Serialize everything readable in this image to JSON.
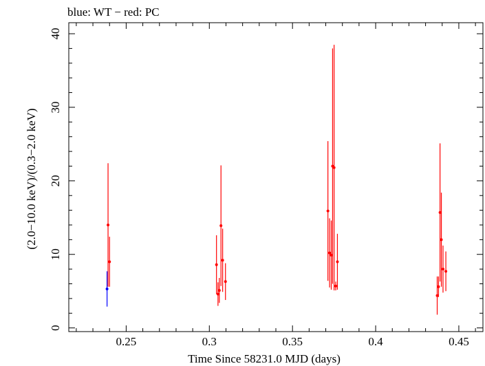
{
  "chart_data": {
    "type": "scatter",
    "title": "blue: WT − red: PC",
    "xlabel": "Time Since 58231.0 MJD (days)",
    "ylabel": "(2.0−10.0 keV)/(0.3−2.0 keV)",
    "xlim": [
      0.2155,
      0.4645
    ],
    "ylim": [
      -0.5,
      41.5
    ],
    "x_ticks": [
      0.25,
      0.3,
      0.35,
      0.4,
      0.45
    ],
    "x_tick_labels": [
      "0.25",
      "0.3",
      "0.35",
      "0.4",
      "0.45"
    ],
    "y_ticks": [
      0,
      10,
      20,
      30,
      40
    ],
    "y_tick_labels": [
      "0",
      "10",
      "20",
      "30",
      "40"
    ],
    "grid": false,
    "series": [
      {
        "color": "#0000ff",
        "points": [
          {
            "x": 0.2385,
            "y": 5.3,
            "lo": 2.9,
            "hi": 7.7
          }
        ]
      },
      {
        "color": "#ff0000",
        "points": [
          {
            "x": 0.2391,
            "y": 14.0,
            "lo": 5.6,
            "hi": 22.4
          },
          {
            "x": 0.24,
            "y": 9.0,
            "lo": 5.6,
            "hi": 12.4
          },
          {
            "x": 0.3043,
            "y": 8.6,
            "lo": 4.6,
            "hi": 12.6
          },
          {
            "x": 0.3052,
            "y": 4.6,
            "lo": 3.0,
            "hi": 6.2
          },
          {
            "x": 0.306,
            "y": 5.1,
            "lo": 3.4,
            "hi": 6.8
          },
          {
            "x": 0.307,
            "y": 13.9,
            "lo": 5.7,
            "hi": 22.1
          },
          {
            "x": 0.308,
            "y": 9.2,
            "lo": 4.9,
            "hi": 13.5
          },
          {
            "x": 0.3097,
            "y": 6.3,
            "lo": 3.8,
            "hi": 8.8
          },
          {
            "x": 0.3713,
            "y": 15.9,
            "lo": 6.4,
            "hi": 25.4
          },
          {
            "x": 0.3723,
            "y": 10.2,
            "lo": 5.5,
            "hi": 14.9
          },
          {
            "x": 0.3733,
            "y": 9.9,
            "lo": 5.2,
            "hi": 14.6
          },
          {
            "x": 0.3741,
            "y": 22.0,
            "lo": 6.0,
            "hi": 38.0
          },
          {
            "x": 0.375,
            "y": 21.8,
            "lo": 5.1,
            "hi": 38.5
          },
          {
            "x": 0.376,
            "y": 5.7,
            "lo": 5.1,
            "hi": 6.3
          },
          {
            "x": 0.377,
            "y": 9.0,
            "lo": 5.2,
            "hi": 12.8
          },
          {
            "x": 0.437,
            "y": 4.4,
            "lo": 1.8,
            "hi": 7.0
          },
          {
            "x": 0.4378,
            "y": 5.6,
            "lo": 4.2,
            "hi": 7.0
          },
          {
            "x": 0.4387,
            "y": 15.7,
            "lo": 6.3,
            "hi": 25.1
          },
          {
            "x": 0.4395,
            "y": 12.0,
            "lo": 5.6,
            "hi": 18.4
          },
          {
            "x": 0.4405,
            "y": 8.0,
            "lo": 4.8,
            "hi": 11.2
          },
          {
            "x": 0.4422,
            "y": 7.7,
            "lo": 5.0,
            "hi": 10.4
          }
        ]
      }
    ]
  }
}
